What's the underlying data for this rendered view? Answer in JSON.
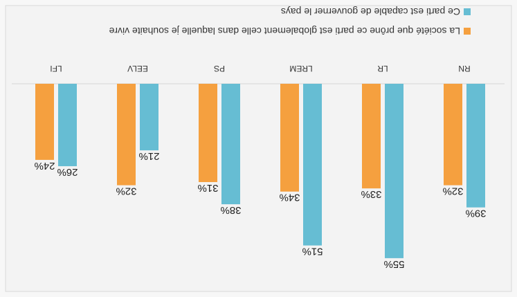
{
  "chart_data": {
    "type": "bar",
    "categories": [
      "RN",
      "LR",
      "LREM",
      "PS",
      "EELV",
      "LFI"
    ],
    "series": [
      {
        "name": "La société que prône ce parti est globalement celle dans laquelle je souhaite vivre",
        "color": "#f5a03f",
        "values": [
          32,
          33,
          34,
          31,
          32,
          24
        ],
        "labels": [
          "32%",
          "33%",
          "34%",
          "31%",
          "32%",
          "24%"
        ]
      },
      {
        "name": "Ce parti est capable de gouverner le pays",
        "color": "#66bdd3",
        "values": [
          39,
          55,
          51,
          38,
          21,
          26
        ],
        "labels": [
          "39%",
          "55%",
          "51%",
          "38%",
          "21%",
          "26%"
        ]
      }
    ],
    "ylim": [
      0,
      60
    ],
    "grid": false,
    "legend": "bottom",
    "orientation": "image rotated 180 degrees"
  }
}
